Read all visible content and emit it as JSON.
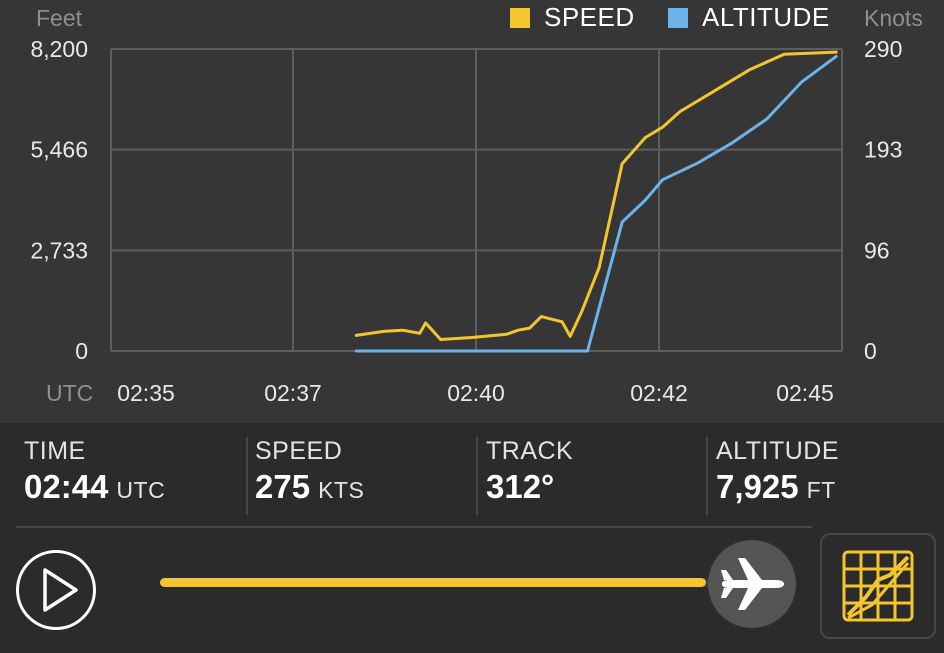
{
  "chart": {
    "left_axis_title": "Feet",
    "right_axis_title": "Knots",
    "utc_label": "UTC",
    "legend": [
      {
        "label": "SPEED",
        "color": "#f3c531"
      },
      {
        "label": "ALTITUDE",
        "color": "#6bb3ea"
      }
    ],
    "left_ticks": [
      "8,200",
      "5,466",
      "2,733",
      "0"
    ],
    "right_ticks": [
      "290",
      "193",
      "96",
      "0"
    ],
    "x_ticks": [
      "02:35",
      "02:37",
      "02:40",
      "02:42",
      "02:45"
    ]
  },
  "chart_data": {
    "type": "line",
    "xlabel": "UTC",
    "ylabel": "Feet",
    "y2label": "Knots",
    "x_ticks": [
      "02:35",
      "02:37",
      "02:40",
      "02:42",
      "02:45"
    ],
    "ylim": [
      0,
      8200
    ],
    "y2lim": [
      0,
      290
    ],
    "grid": true,
    "legend_position": "top-right",
    "series": [
      {
        "name": "SPEED",
        "axis": "right",
        "color": "#f3c531",
        "points": [
          [
            "02:38:20",
            15
          ],
          [
            "02:38:45",
            19
          ],
          [
            "02:39:00",
            20
          ],
          [
            "02:39:15",
            17
          ],
          [
            "02:39:20",
            27
          ],
          [
            "02:39:33",
            11
          ],
          [
            "02:40:00",
            13
          ],
          [
            "02:40:30",
            16
          ],
          [
            "02:40:40",
            20
          ],
          [
            "02:40:50",
            22
          ],
          [
            "02:41:00",
            33
          ],
          [
            "02:41:18",
            28
          ],
          [
            "02:41:25",
            14
          ],
          [
            "02:41:35",
            38
          ],
          [
            "02:41:50",
            80
          ],
          [
            "02:42:10",
            180
          ],
          [
            "02:42:30",
            205
          ],
          [
            "02:42:45",
            215
          ],
          [
            "02:43:00",
            230
          ],
          [
            "02:43:30",
            250
          ],
          [
            "02:44:00",
            270
          ],
          [
            "02:44:30",
            285
          ],
          [
            "02:45:15",
            287
          ]
        ]
      },
      {
        "name": "ALTITUDE",
        "axis": "left",
        "color": "#6bb3ea",
        "points": [
          [
            "02:38:20",
            0
          ],
          [
            "02:40:00",
            0
          ],
          [
            "02:41:40",
            0
          ],
          [
            "02:42:10",
            3500
          ],
          [
            "02:42:30",
            4100
          ],
          [
            "02:42:45",
            4650
          ],
          [
            "02:43:15",
            5100
          ],
          [
            "02:43:45",
            5650
          ],
          [
            "02:44:15",
            6300
          ],
          [
            "02:44:45",
            7300
          ],
          [
            "02:45:15",
            8000
          ]
        ]
      }
    ]
  },
  "stats": [
    {
      "label": "TIME",
      "value": "02:44",
      "unit": "UTC"
    },
    {
      "label": "SPEED",
      "value": "275",
      "unit": "KTS"
    },
    {
      "label": "TRACK",
      "value": "312°",
      "unit": ""
    },
    {
      "label": "ALTITUDE",
      "value": "7,925",
      "unit": "FT"
    }
  ],
  "playback": {
    "progress": 0.95,
    "accent_color": "#f3c531"
  },
  "icons": {
    "play": "play-icon",
    "thumb": "airplane-icon",
    "toggle": "chart-grid-icon"
  }
}
